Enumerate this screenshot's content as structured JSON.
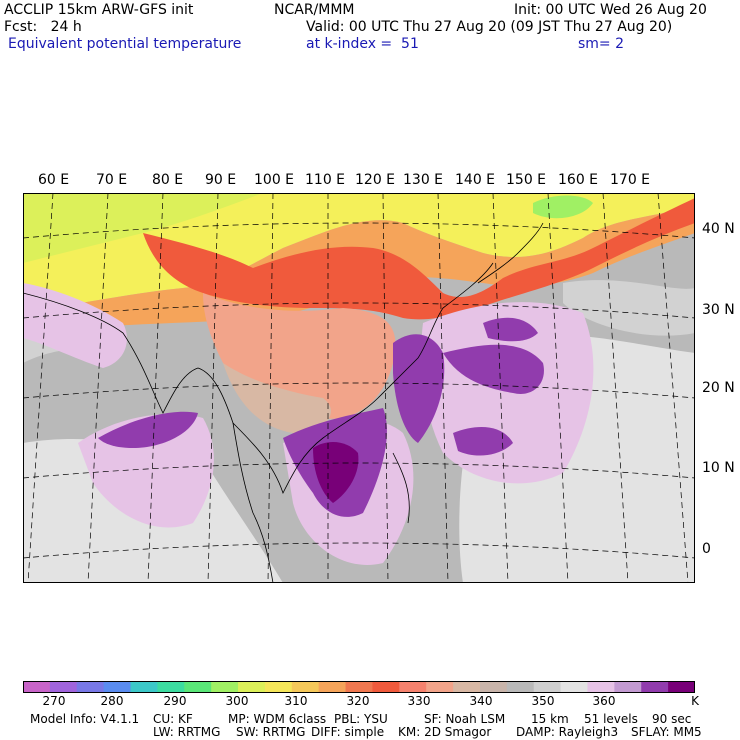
{
  "header": {
    "model": "ACCLIP 15km ARW-GFS init",
    "org": "NCAR/MMM",
    "init": "Init: 00 UTC Wed 26 Aug 20",
    "fcst": "Fcst:   24 h",
    "valid": "Valid: 00 UTC Thu 27 Aug 20 (09 JST Thu 27 Aug 20)",
    "field": "Equivalent potential temperature",
    "level": "at k-index =  51",
    "sm": "sm= 2"
  },
  "map": {
    "lon_labels": [
      "60 E",
      "70 E",
      "80 E",
      "90 E",
      "100 E",
      "110 E",
      "120 E",
      "130 E",
      "140 E",
      "150 E",
      "160 E",
      "170 E"
    ],
    "lat_labels": [
      "40 N",
      "30 N",
      "20 N",
      "10 N",
      "0"
    ],
    "colors": {
      "bg_gray": "#b9b9b9",
      "light_gray": "#e3e3e3",
      "yellow": "#f4f05a",
      "orange": "#f5a45a",
      "red": "#f05a3c",
      "salmon": "#f2a48a",
      "tan": "#d8b8a4",
      "pink": "#e6c3e6",
      "purple": "#913cad",
      "dark_purple": "#780078"
    }
  },
  "colorbar": {
    "labels": [
      "270",
      "280",
      "290",
      "300",
      "310",
      "320",
      "330",
      "340",
      "350",
      "360",
      "K"
    ],
    "colors": [
      "#c864c8",
      "#a064dc",
      "#7878e6",
      "#5a8cf0",
      "#3cc8c8",
      "#3cdca0",
      "#5ae678",
      "#a0f064",
      "#dcf05a",
      "#f5e65a",
      "#f5c85a",
      "#f5a45a",
      "#f07850",
      "#f05a3c",
      "#f5826e",
      "#f2a48a",
      "#d8b8a4",
      "#c8b4aa",
      "#b9b9b9",
      "#cfcfcf",
      "#e3e3e3",
      "#e6c3e6",
      "#c39bd2",
      "#913cad",
      "#780078"
    ]
  },
  "info": {
    "line1": [
      "Model Info: V4.1.1",
      "CU: KF",
      "MP: WDM 6class",
      "PBL: YSU",
      "SF: Noah LSM",
      "15 km",
      "51 levels",
      "90 sec"
    ],
    "line2": [
      "LW: RRTMG",
      "SW: RRTMG",
      "DIFF: simple",
      "KM: 2D Smagor",
      "DAMP: Rayleigh3",
      "SFLAY: MM5"
    ]
  }
}
